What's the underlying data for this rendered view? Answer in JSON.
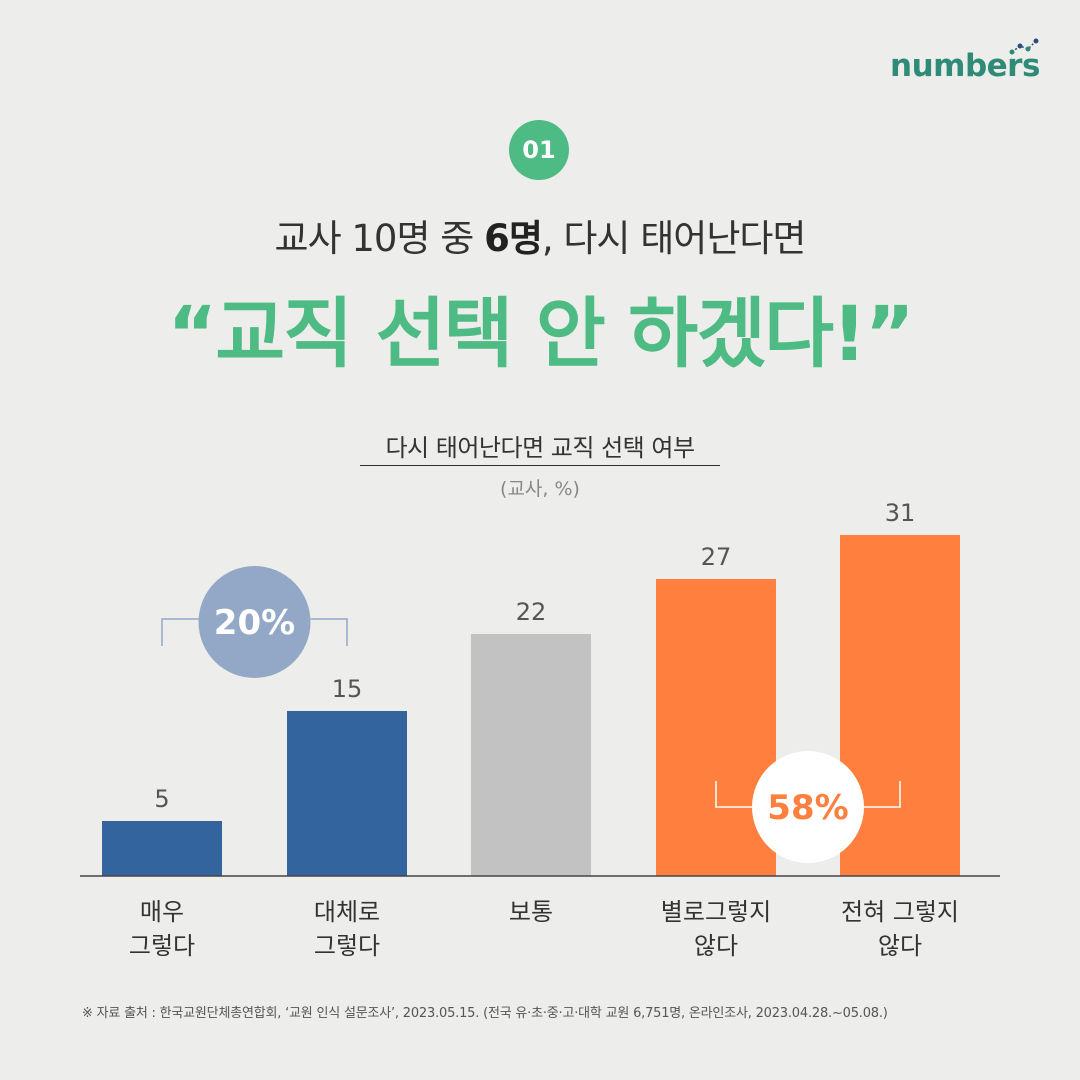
{
  "brand": {
    "logo_text": "numbers"
  },
  "badge": "01",
  "subtitle": {
    "before": "교사 10명 중 ",
    "bold": "6명",
    "after": ", 다시 태어난다면"
  },
  "headline": "“교직 선택 안 하겠다!”",
  "colors": {
    "green": "#4dbb83",
    "blue": "#34649d",
    "gray": "#c2c2c2",
    "orange": "#ff7f3f",
    "group_blue_circle": "#93a8c6",
    "background": "#ededeb"
  },
  "chart_data": {
    "type": "bar",
    "title": "다시 태어난다면 교직 선택 여부",
    "unit": "(교사, %)",
    "categories": [
      "매우\n그렇다",
      "대체로\n그렇다",
      "보통",
      "별로그렇지\n않다",
      "전혀 그렇지\n않다"
    ],
    "values": [
      5,
      15,
      22,
      27,
      31
    ],
    "bar_colors": [
      "#34649d",
      "#34649d",
      "#c2c2c2",
      "#ff7f3f",
      "#ff7f3f"
    ],
    "ylim": [
      0,
      31
    ],
    "grid": false,
    "annotations": [
      {
        "label": "20%",
        "categories": [
          0,
          1
        ],
        "color": "#93a8c6",
        "text_color": "#ffffff"
      },
      {
        "label": "58%",
        "categories": [
          3,
          4
        ],
        "color": "#ffffff",
        "text_color": "#ff7f3f"
      }
    ]
  },
  "source": "※ 자료 출처 :   한국교원단체총연합회, ‘교원 인식 설문조사’, 2023.05.15. (전국 유·초·중·고·대학 교원 6,751명, 온라인조사, 2023.04.28.~05.08.)"
}
